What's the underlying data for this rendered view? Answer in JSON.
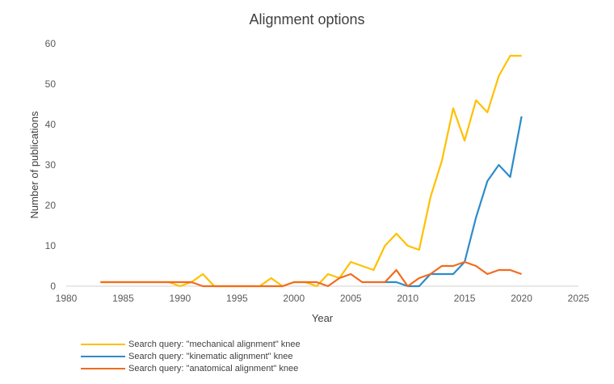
{
  "chart_data": {
    "type": "line",
    "title": "Alignment options",
    "xlabel": "Year",
    "ylabel": "Number of publications",
    "xlim": [
      1980,
      2025
    ],
    "ylim": [
      0,
      60
    ],
    "xticks": [
      1980,
      1985,
      1990,
      1995,
      2000,
      2005,
      2010,
      2015,
      2020,
      2025
    ],
    "yticks": [
      0,
      10,
      20,
      30,
      40,
      50,
      60
    ],
    "grid": false,
    "legend": "bottom-left",
    "series": [
      {
        "name": "Search query: \"mechanical alignment\" knee",
        "color": "#FFC000",
        "x": [
          1983,
          1984,
          1985,
          1986,
          1987,
          1988,
          1989,
          1990,
          1991,
          1992,
          1993,
          1994,
          1995,
          1996,
          1997,
          1998,
          1999,
          2000,
          2001,
          2002,
          2003,
          2004,
          2005,
          2006,
          2007,
          2008,
          2009,
          2010,
          2011,
          2012,
          2013,
          2014,
          2015,
          2016,
          2017,
          2018,
          2019,
          2020
        ],
        "y": [
          1,
          1,
          1,
          1,
          1,
          1,
          1,
          0,
          1,
          3,
          0,
          0,
          0,
          0,
          0,
          2,
          0,
          1,
          1,
          0,
          3,
          2,
          6,
          5,
          4,
          10,
          13,
          10,
          9,
          22,
          31,
          44,
          36,
          46,
          43,
          52,
          57,
          57
        ]
      },
      {
        "name": "Search query: \"kinematic alignment\" knee",
        "color": "#2E8BC9",
        "x": [
          2008,
          2009,
          2010,
          2011,
          2012,
          2013,
          2014,
          2015,
          2016,
          2017,
          2018,
          2019,
          2020
        ],
        "y": [
          1,
          1,
          0,
          0,
          3,
          3,
          3,
          6,
          17,
          26,
          30,
          27,
          42
        ]
      },
      {
        "name": "Search query: \"anatomical alignment\" knee",
        "color": "#F26B1D",
        "x": [
          1983,
          1984,
          1985,
          1986,
          1987,
          1988,
          1989,
          1990,
          1991,
          1992,
          1993,
          1994,
          1995,
          1996,
          1997,
          1998,
          1999,
          2000,
          2001,
          2002,
          2003,
          2004,
          2005,
          2006,
          2007,
          2008,
          2009,
          2010,
          2011,
          2012,
          2013,
          2014,
          2015,
          2016,
          2017,
          2018,
          2019,
          2020
        ],
        "y": [
          1,
          1,
          1,
          1,
          1,
          1,
          1,
          1,
          1,
          0,
          0,
          0,
          0,
          0,
          0,
          0,
          0,
          1,
          1,
          1,
          0,
          2,
          3,
          1,
          1,
          1,
          4,
          0,
          2,
          3,
          5,
          5,
          6,
          5,
          3,
          4,
          4,
          3
        ]
      }
    ]
  }
}
